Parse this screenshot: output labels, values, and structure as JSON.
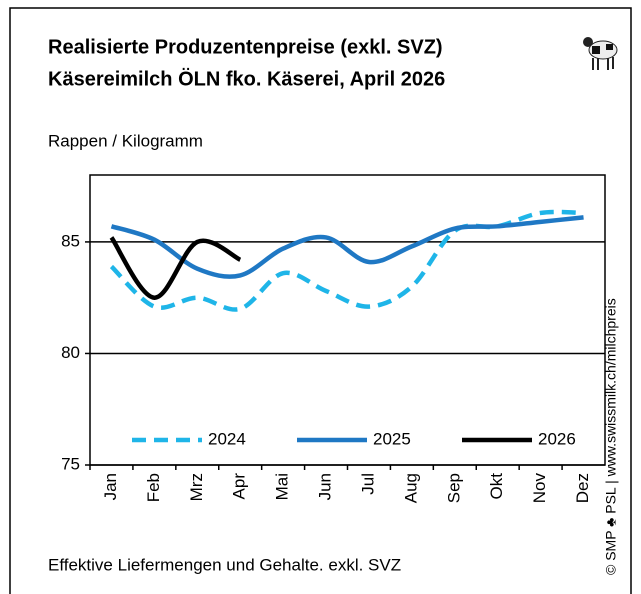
{
  "chart_data": {
    "type": "line",
    "title": "Realisierte Produzentenpreise (exkl. SVZ)",
    "subtitle": "Käsereimilch ÖLN fko. Käserei, April 2026",
    "ylabel": "Rappen / Kilogramm",
    "note": "Effektive Liefermengen und Gehalte. exkl. SVZ",
    "credit": "© SMP ♣ PSL | www.swissmilk.ch/milchpreis",
    "categories": [
      "Jan",
      "Feb",
      "Mrz",
      "Apr",
      "Mai",
      "Jun",
      "Jul",
      "Aug",
      "Sep",
      "Okt",
      "Nov",
      "Dez"
    ],
    "series": [
      {
        "name": "2024",
        "color": "#1fb5e8",
        "dashed": true,
        "values": [
          83.9,
          82.1,
          82.5,
          82.0,
          83.6,
          82.8,
          82.1,
          83.0,
          85.5,
          85.7,
          86.3,
          86.3
        ]
      },
      {
        "name": "2025",
        "color": "#1f78c4",
        "dashed": false,
        "values": [
          85.7,
          85.1,
          83.8,
          83.5,
          84.7,
          85.2,
          84.1,
          84.8,
          85.6,
          85.7,
          85.9,
          86.1
        ]
      },
      {
        "name": "2026",
        "color": "#000000",
        "dashed": false,
        "values": [
          85.2,
          82.5,
          85.0,
          84.2,
          null,
          null,
          null,
          null,
          null,
          null,
          null,
          null
        ]
      }
    ],
    "ylim": [
      75,
      88
    ],
    "yticks": [
      75,
      80,
      85
    ],
    "grid": true,
    "legend": "bottom"
  }
}
